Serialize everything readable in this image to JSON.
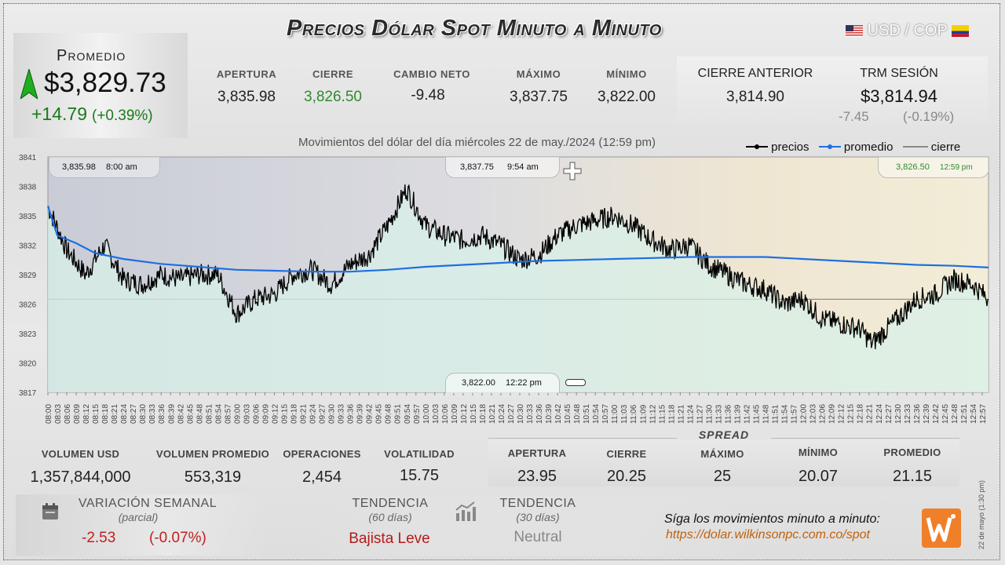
{
  "title": "Precios Dólar Spot Minuto a Minuto",
  "pair": "USD / COP",
  "promedio": {
    "label": "Promedio",
    "price": "$3,829.73",
    "change": "+14.79",
    "change_pct": "(+0.39%)"
  },
  "stats": [
    {
      "label": "APERTURA",
      "value": "3,835.98",
      "color": "#222222"
    },
    {
      "label": "CIERRE",
      "value": "3,826.50",
      "color": "#2e8b2e"
    },
    {
      "label": "CAMBIO NETO",
      "value": "-9.48",
      "color": "#222222"
    },
    {
      "label": "MÁXIMO",
      "value": "3,837.75",
      "color": "#222222"
    },
    {
      "label": "MÍNIMO",
      "value": "3,822.00",
      "color": "#222222"
    }
  ],
  "cierre_anterior": {
    "label": "CIERRE ANTERIOR",
    "value": "3,814.90"
  },
  "trm": {
    "label": "TRM SESIÓN",
    "value": "$3,814.94",
    "change": "-7.45",
    "change_pct": "(-0.19%)"
  },
  "subtitle": "Movimientos del dólar del día miércoles 22 de may./2024 (12:59 pm)",
  "legend": {
    "precios": "precios",
    "promedio": "promedio",
    "cierre": "cierre"
  },
  "callouts": {
    "open": {
      "price": "3,835.98",
      "time": "8:00 am"
    },
    "max": {
      "price": "3,837.75",
      "time": "9:54 am"
    },
    "close": {
      "price": "3,826.50",
      "time": "12:59 pm"
    },
    "min": {
      "price": "3,822.00",
      "time": "12:22 pm"
    }
  },
  "chart_data": {
    "type": "line",
    "ylim": [
      3817,
      3841
    ],
    "yticks": [
      3817,
      3820,
      3823,
      3826,
      3829,
      3832,
      3835,
      3838,
      3841
    ],
    "xticks": [
      "08:00",
      "08:03",
      "08:06",
      "08:09",
      "08:12",
      "08:15",
      "08:18",
      "08:21",
      "08:24",
      "08:27",
      "08:30",
      "08:33",
      "08:36",
      "08:39",
      "08:42",
      "08:45",
      "08:48",
      "08:51",
      "08:54",
      "08:57",
      "09:00",
      "09:03",
      "09:06",
      "09:09",
      "09:12",
      "09:15",
      "09:18",
      "09:21",
      "09:24",
      "09:27",
      "09:30",
      "09:33",
      "09:36",
      "09:39",
      "09:42",
      "09:45",
      "09:48",
      "09:51",
      "09:54",
      "09:57",
      "10:00",
      "10:03",
      "10:06",
      "10:09",
      "10:12",
      "10:15",
      "10:18",
      "10:21",
      "10:24",
      "10:27",
      "10:30",
      "10:33",
      "10:36",
      "10:39",
      "10:42",
      "10:45",
      "10:48",
      "10:51",
      "10:54",
      "10:57",
      "11:00",
      "11:03",
      "11:06",
      "11:09",
      "11:12",
      "11:15",
      "11:18",
      "11:21",
      "11:24",
      "11:27",
      "11:30",
      "11:33",
      "11:36",
      "11:39",
      "11:42",
      "11:45",
      "11:48",
      "11:51",
      "11:54",
      "11:57",
      "12:00",
      "12:03",
      "12:06",
      "12:09",
      "12:12",
      "12:15",
      "12:18",
      "12:21",
      "12:24",
      "12:27",
      "12:30",
      "12:33",
      "12:36",
      "12:39",
      "12:42",
      "12:45",
      "12:48",
      "12:51",
      "12:54",
      "12:57"
    ],
    "series": [
      {
        "name": "precios",
        "color": "#000000",
        "x": [
          "08:00",
          "08:06",
          "08:12",
          "08:18",
          "08:24",
          "08:30",
          "08:36",
          "08:42",
          "08:48",
          "08:54",
          "09:00",
          "09:06",
          "09:12",
          "09:18",
          "09:24",
          "09:30",
          "09:36",
          "09:42",
          "09:48",
          "09:54",
          "10:00",
          "10:06",
          "10:12",
          "10:18",
          "10:24",
          "10:30",
          "10:36",
          "10:42",
          "10:48",
          "10:54",
          "11:00",
          "11:06",
          "11:12",
          "11:18",
          "11:24",
          "11:30",
          "11:36",
          "11:42",
          "11:48",
          "11:54",
          "12:00",
          "12:06",
          "12:12",
          "12:18",
          "12:22",
          "12:30",
          "12:36",
          "12:42",
          "12:48",
          "12:54",
          "12:59"
        ],
        "values": [
          3835.98,
          3831.5,
          3829.0,
          3832.0,
          3828.5,
          3828.0,
          3829.0,
          3828.5,
          3829.0,
          3829.0,
          3825.0,
          3826.5,
          3827.0,
          3829.0,
          3829.5,
          3828.0,
          3830.0,
          3831.0,
          3834.0,
          3837.75,
          3834.0,
          3833.0,
          3832.5,
          3833.0,
          3832.0,
          3830.5,
          3831.0,
          3833.0,
          3834.0,
          3834.5,
          3835.0,
          3834.0,
          3832.5,
          3831.5,
          3832.0,
          3830.0,
          3829.0,
          3828.0,
          3827.5,
          3826.0,
          3826.5,
          3824.5,
          3824.0,
          3823.5,
          3822.0,
          3824.5,
          3826.5,
          3827.0,
          3828.5,
          3828.0,
          3826.5
        ]
      },
      {
        "name": "promedio",
        "color": "#1e6fe0",
        "x": [
          "08:00",
          "08:03",
          "08:09",
          "08:15",
          "08:24",
          "08:36",
          "08:48",
          "09:00",
          "09:12",
          "09:24",
          "09:36",
          "09:48",
          "10:00",
          "10:12",
          "10:24",
          "10:36",
          "10:48",
          "11:00",
          "11:12",
          "11:24",
          "11:36",
          "11:48",
          "12:00",
          "12:12",
          "12:24",
          "12:36",
          "12:48",
          "12:59"
        ],
        "values": [
          3835.98,
          3833.0,
          3832.2,
          3831.2,
          3830.6,
          3830.1,
          3829.8,
          3829.5,
          3829.4,
          3829.3,
          3829.3,
          3829.5,
          3829.8,
          3830.0,
          3830.2,
          3830.4,
          3830.5,
          3830.6,
          3830.7,
          3830.8,
          3830.8,
          3830.8,
          3830.6,
          3830.4,
          3830.2,
          3830.0,
          3829.9,
          3829.73
        ]
      }
    ],
    "reference_line": {
      "name": "cierre",
      "value": 3826.5
    }
  },
  "bottom_stats": [
    {
      "label": "VOLUMEN USD",
      "value": "1,357,844,000"
    },
    {
      "label": "VOLUMEN PROMEDIO",
      "value": "553,319"
    },
    {
      "label": "OPERACIONES",
      "value": "2,454"
    },
    {
      "label": "VOLATILIDAD",
      "value": "15.75"
    }
  ],
  "spread": {
    "title": "SPREAD",
    "items": [
      {
        "label": "APERTURA",
        "value": "23.95"
      },
      {
        "label": "CIERRE",
        "value": "20.25"
      },
      {
        "label": "MÁXIMO",
        "value": "25"
      },
      {
        "label": "MÍNIMO",
        "value": "20.07"
      },
      {
        "label": "PROMEDIO",
        "value": "21.15"
      }
    ]
  },
  "variacion": {
    "label": "VARIACIÓN SEMANAL",
    "sub": "(parcial)",
    "value": "-2.53",
    "pct": "(-0.07%)"
  },
  "tendencia60": {
    "label": "TENDENCIA",
    "sub": "(60 días)",
    "value": "Bajista Leve"
  },
  "tendencia30": {
    "label": "TENDENCIA",
    "sub": "(30 días)",
    "value": "Neutral"
  },
  "promo": {
    "text": "Síga los movimientos minuto a minuto:",
    "url": "https://dolar.wilkinsonpc.com.co/spot"
  },
  "side_note": "22 de mayo (1:30 pm)"
}
